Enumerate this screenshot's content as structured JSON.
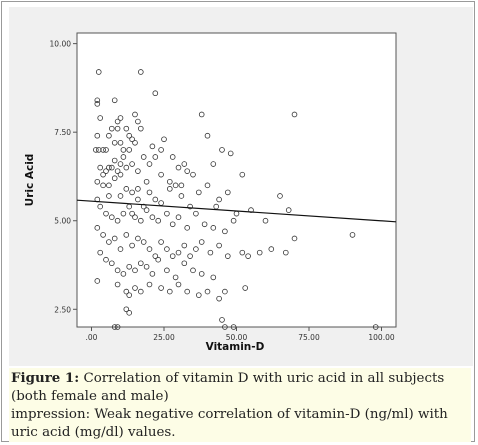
{
  "chart_data": {
    "type": "scatter",
    "xlabel": "Vitamin-D",
    "ylabel": "Uric Acid",
    "xlim": [
      -5,
      105
    ],
    "ylim": [
      2,
      10.3
    ],
    "x_ticks": [
      0,
      25,
      50,
      75,
      100
    ],
    "x_tick_labels": [
      ".00",
      "25.00",
      "50.00",
      "75.00",
      "100.00"
    ],
    "y_ticks": [
      2.5,
      5.0,
      7.5,
      10.0
    ],
    "y_tick_labels": [
      "2.50",
      "5.00",
      "7.50",
      "10.00"
    ],
    "fit_line": {
      "x": [
        -5,
        105
      ],
      "y": [
        5.58,
        4.97
      ]
    },
    "points": [
      [
        2.5,
        9.2
      ],
      [
        2,
        8.4
      ],
      [
        2,
        8.3
      ],
      [
        3,
        7.9
      ],
      [
        2,
        7.4
      ],
      [
        1.5,
        7.0
      ],
      [
        2.5,
        7.0
      ],
      [
        4,
        7.0
      ],
      [
        5,
        7.0
      ],
      [
        6,
        7.4
      ],
      [
        7,
        7.6
      ],
      [
        8,
        8.4
      ],
      [
        9,
        7.8
      ],
      [
        8,
        7.2
      ],
      [
        9,
        7.6
      ],
      [
        10,
        7.9
      ],
      [
        10,
        7.2
      ],
      [
        11,
        7.0
      ],
      [
        12,
        7.6
      ],
      [
        13,
        7.4
      ],
      [
        14,
        7.3
      ],
      [
        15,
        8.0
      ],
      [
        16,
        7.8
      ],
      [
        17,
        7.6
      ],
      [
        15,
        7.2
      ],
      [
        13,
        7.0
      ],
      [
        11,
        6.8
      ],
      [
        10,
        6.6
      ],
      [
        9,
        6.4
      ],
      [
        8,
        6.7
      ],
      [
        7,
        6.5
      ],
      [
        6,
        6.5
      ],
      [
        5,
        6.4
      ],
      [
        4,
        6.3
      ],
      [
        3,
        6.5
      ],
      [
        2,
        6.1
      ],
      [
        4,
        6.0
      ],
      [
        6,
        6.0
      ],
      [
        8,
        6.2
      ],
      [
        10,
        6.3
      ],
      [
        12,
        6.5
      ],
      [
        14,
        6.6
      ],
      [
        16,
        6.4
      ],
      [
        18,
        6.8
      ],
      [
        20,
        6.6
      ],
      [
        22,
        6.8
      ],
      [
        24,
        7.0
      ],
      [
        25,
        7.3
      ],
      [
        28,
        6.8
      ],
      [
        30,
        6.5
      ],
      [
        32,
        6.6
      ],
      [
        35,
        6.3
      ],
      [
        38,
        8.0
      ],
      [
        40,
        7.4
      ],
      [
        42,
        6.6
      ],
      [
        45,
        7.0
      ],
      [
        48,
        6.9
      ],
      [
        22,
        8.6
      ],
      [
        17,
        9.2
      ],
      [
        70,
        8.0
      ],
      [
        12,
        5.9
      ],
      [
        14,
        5.8
      ],
      [
        16,
        5.6
      ],
      [
        18,
        5.4
      ],
      [
        20,
        5.8
      ],
      [
        22,
        5.6
      ],
      [
        24,
        5.5
      ],
      [
        27,
        5.9
      ],
      [
        29,
        6.0
      ],
      [
        31,
        5.7
      ],
      [
        34,
        5.4
      ],
      [
        37,
        5.8
      ],
      [
        40,
        6.0
      ],
      [
        44,
        5.6
      ],
      [
        47,
        5.8
      ],
      [
        50,
        5.2
      ],
      [
        55,
        5.3
      ],
      [
        60,
        5.0
      ],
      [
        65,
        5.7
      ],
      [
        68,
        5.3
      ],
      [
        3,
        5.4
      ],
      [
        5,
        5.2
      ],
      [
        7,
        5.1
      ],
      [
        9,
        5.0
      ],
      [
        11,
        5.2
      ],
      [
        13,
        5.4
      ],
      [
        15,
        5.1
      ],
      [
        17,
        5.0
      ],
      [
        19,
        5.3
      ],
      [
        21,
        5.1
      ],
      [
        23,
        5.0
      ],
      [
        26,
        5.2
      ],
      [
        28,
        4.9
      ],
      [
        30,
        5.1
      ],
      [
        33,
        4.8
      ],
      [
        36,
        5.2
      ],
      [
        39,
        4.9
      ],
      [
        42,
        4.8
      ],
      [
        46,
        4.7
      ],
      [
        49,
        5.0
      ],
      [
        54,
        4.0
      ],
      [
        58,
        4.1
      ],
      [
        62,
        4.2
      ],
      [
        67,
        4.1
      ],
      [
        70,
        4.5
      ],
      [
        90,
        4.6
      ],
      [
        2,
        4.8
      ],
      [
        4,
        4.6
      ],
      [
        6,
        4.4
      ],
      [
        8,
        4.5
      ],
      [
        10,
        4.2
      ],
      [
        12,
        4.6
      ],
      [
        14,
        4.3
      ],
      [
        16,
        4.5
      ],
      [
        18,
        4.4
      ],
      [
        20,
        4.2
      ],
      [
        22,
        4.0
      ],
      [
        24,
        4.4
      ],
      [
        26,
        4.2
      ],
      [
        28,
        4.0
      ],
      [
        30,
        4.1
      ],
      [
        32,
        4.3
      ],
      [
        34,
        4.0
      ],
      [
        36,
        4.2
      ],
      [
        38,
        4.4
      ],
      [
        41,
        4.1
      ],
      [
        44,
        4.3
      ],
      [
        47,
        4.0
      ],
      [
        52,
        4.1
      ],
      [
        3,
        4.1
      ],
      [
        5,
        3.9
      ],
      [
        7,
        3.8
      ],
      [
        9,
        3.6
      ],
      [
        11,
        3.5
      ],
      [
        13,
        3.7
      ],
      [
        15,
        3.6
      ],
      [
        17,
        3.8
      ],
      [
        19,
        3.7
      ],
      [
        21,
        3.5
      ],
      [
        23,
        3.9
      ],
      [
        26,
        3.6
      ],
      [
        29,
        3.4
      ],
      [
        32,
        3.8
      ],
      [
        35,
        3.6
      ],
      [
        38,
        3.5
      ],
      [
        42,
        3.4
      ],
      [
        2,
        3.3
      ],
      [
        9,
        3.2
      ],
      [
        12,
        3.0
      ],
      [
        13,
        2.9
      ],
      [
        15,
        3.1
      ],
      [
        17,
        3.0
      ],
      [
        20,
        3.2
      ],
      [
        24,
        3.1
      ],
      [
        27,
        3.0
      ],
      [
        30,
        3.2
      ],
      [
        33,
        3.0
      ],
      [
        37,
        2.9
      ],
      [
        40,
        3.0
      ],
      [
        44,
        2.8
      ],
      [
        46,
        3.0
      ],
      [
        53,
        3.1
      ],
      [
        12,
        2.5
      ],
      [
        13,
        2.4
      ],
      [
        8,
        2.0
      ],
      [
        9,
        2.0
      ],
      [
        45,
        2.2
      ],
      [
        46,
        2.0
      ],
      [
        49,
        2.0
      ],
      [
        98,
        2.0
      ],
      [
        31,
        6.0
      ],
      [
        21,
        7.1
      ],
      [
        24,
        6.3
      ],
      [
        27,
        6.1
      ],
      [
        33,
        6.4
      ],
      [
        19,
        6.1
      ],
      [
        10,
        5.7
      ],
      [
        16,
        5.9
      ],
      [
        2,
        5.6
      ],
      [
        6,
        5.7
      ],
      [
        14,
        5.2
      ],
      [
        43,
        5.4
      ],
      [
        52,
        6.3
      ]
    ]
  },
  "caption": {
    "figure_label": "Figure 1:",
    "figure_text": " Correlation of vitamin D with uric acid in all subjects (both female and male)",
    "impression_text": "impression: Weak negative correlation of vitamin-D (ng/ml) with uric acid (mg/dl) values."
  },
  "colors": {
    "chart_bg": "#f0f0f0",
    "plot_bg": "#ffffff",
    "marker": "#333333",
    "caption_bg": "#fdfde6"
  }
}
